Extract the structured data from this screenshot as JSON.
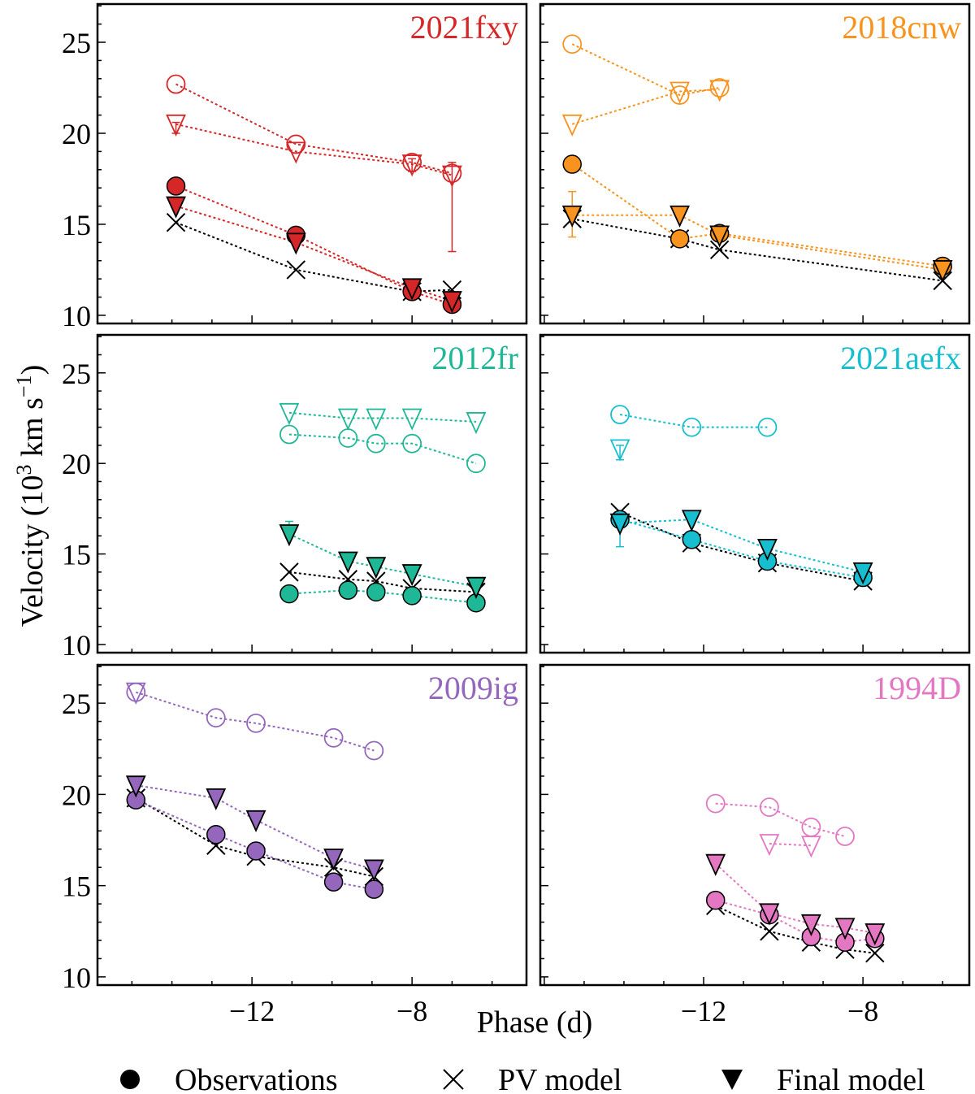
{
  "chart_data": {
    "type": "scatter",
    "xlabel": "Phase (d)",
    "ylabel": "Velocity (10",
    "ylabel_sup1": "3",
    "ylabel_mid": " km s",
    "ylabel_sup2": "−1",
    "ylabel_end": ")",
    "ylim": [
      9.55,
      27.1
    ],
    "yticks": [
      10,
      15,
      20,
      25
    ],
    "xticks": [
      -12,
      -8
    ],
    "xtick_labels": [
      "−12",
      "−8"
    ],
    "legend": {
      "position": "bottom",
      "entries": [
        {
          "label": "Observations",
          "marker": "filled-circle"
        },
        {
          "label": "PV model",
          "marker": "x"
        },
        {
          "label": "Final model",
          "marker": "filled-triangle-down"
        }
      ]
    },
    "panels": [
      {
        "name": "2021fxy",
        "color": "#d62728",
        "xlim": [
          -15.86,
          -5.14
        ],
        "hv_obs": {
          "x": [
            -13.9,
            -10.9,
            -8.0,
            -7.0
          ],
          "y": [
            22.7,
            19.4,
            18.4,
            17.8
          ]
        },
        "hv_model": {
          "x": [
            -13.9,
            -10.9,
            -8.0,
            -7.0
          ],
          "y": [
            20.5,
            19.0,
            18.3,
            17.7
          ],
          "err": [
            [
              20.0,
              20.6
            ],
            null,
            [
              17.9,
              18.6
            ],
            [
              13.5,
              18.4
            ]
          ]
        },
        "obs": {
          "x": [
            -13.9,
            -10.9,
            -8.0,
            -7.0
          ],
          "y": [
            17.1,
            14.4,
            11.3,
            10.6
          ]
        },
        "pv": {
          "x": [
            -13.9,
            -10.9,
            -8.0,
            -7.0
          ],
          "y": [
            15.1,
            12.5,
            11.3,
            11.4
          ]
        },
        "final": {
          "x": [
            -13.9,
            -10.9,
            -8.0,
            -7.0
          ],
          "y": [
            16.0,
            14.0,
            11.5,
            10.8
          ]
        }
      },
      {
        "name": "2018cnw",
        "color": "#f7931e",
        "xlim": [
          -16.1,
          -5.33
        ],
        "hv_obs": {
          "x": [
            -15.3,
            -12.6,
            -11.6
          ],
          "y": [
            24.9,
            22.1,
            22.5
          ]
        },
        "hv_model": {
          "x": [
            -15.3,
            -12.6,
            -11.6
          ],
          "y": [
            20.5,
            22.3,
            22.4
          ]
        },
        "obs": {
          "x": [
            -15.3,
            -12.6,
            -11.6,
            -6.0
          ],
          "y": [
            18.3,
            14.2,
            14.5,
            12.7
          ]
        },
        "pv": {
          "x": [
            -15.3,
            -12.6,
            -11.6,
            -6.0
          ],
          "y": [
            15.3,
            14.2,
            13.6,
            11.9
          ]
        },
        "final": {
          "x": [
            -15.3,
            -12.6,
            -11.6,
            -6.0
          ],
          "y": [
            15.5,
            15.5,
            14.4,
            12.5
          ],
          "err": [
            [
              14.3,
              16.8
            ],
            null,
            null,
            null
          ]
        }
      },
      {
        "name": "2012fr",
        "color": "#1fb896",
        "xlim": [
          -15.86,
          -5.14
        ],
        "hv_obs": {
          "x": [
            -11.07,
            -9.6,
            -8.9,
            -8.0,
            -6.4
          ],
          "y": [
            21.6,
            21.4,
            21.1,
            21.1,
            20.0
          ]
        },
        "hv_model": {
          "x": [
            -11.07,
            -9.6,
            -8.9,
            -8.0,
            -6.4
          ],
          "y": [
            22.8,
            22.5,
            22.5,
            22.5,
            22.3
          ]
        },
        "obs": {
          "x": [
            -11.07,
            -9.6,
            -8.9,
            -8.0,
            -6.4
          ],
          "y": [
            12.8,
            13.0,
            12.9,
            12.7,
            12.3
          ]
        },
        "pv": {
          "x": [
            -11.07,
            -9.6,
            -8.9,
            -8.0,
            -6.4
          ],
          "y": [
            14.0,
            13.6,
            13.5,
            13.1,
            12.9
          ]
        },
        "final": {
          "x": [
            -11.07,
            -9.6,
            -8.9,
            -8.0,
            -6.4
          ],
          "y": [
            16.1,
            14.6,
            14.3,
            13.9,
            13.2
          ],
          "err": [
            [
              15.9,
              16.8
            ],
            null,
            null,
            null,
            null
          ]
        }
      },
      {
        "name": "2021aefx",
        "color": "#17becf",
        "xlim": [
          -16.1,
          -5.33
        ],
        "hv_obs": {
          "x": [
            -14.1,
            -12.3,
            -10.4
          ],
          "y": [
            22.7,
            22.0,
            22.0
          ]
        },
        "hv_model": {
          "x": [
            -14.1
          ],
          "y": [
            20.8
          ],
          "err": [
            [
              20.2,
              21.0
            ]
          ]
        },
        "obs": {
          "x": [
            -14.1,
            -12.3,
            -10.4,
            -8.0
          ],
          "y": [
            16.9,
            15.8,
            14.6,
            13.7
          ],
          "err": [
            [
              15.4,
              17.3
            ],
            null,
            null,
            null
          ]
        },
        "pv": {
          "x": [
            -14.1,
            -12.3,
            -10.4,
            -8.0
          ],
          "y": [
            17.3,
            15.6,
            14.5,
            13.5
          ]
        },
        "final": {
          "x": [
            -14.1,
            -12.3,
            -10.4,
            -8.0
          ],
          "y": [
            16.7,
            16.9,
            15.3,
            14.0
          ]
        }
      },
      {
        "name": "2009ig",
        "color": "#9467bd",
        "xlim": [
          -15.86,
          -5.14
        ],
        "hv_obs": {
          "x": [
            -14.9,
            -12.9,
            -11.9,
            -9.96,
            -8.95
          ],
          "y": [
            25.6,
            24.2,
            23.9,
            23.1,
            22.4
          ]
        },
        "hv_model": {
          "x": [
            -14.9
          ],
          "y": [
            25.6
          ]
        },
        "obs": {
          "x": [
            -14.9,
            -12.9,
            -11.9,
            -9.96,
            -8.95
          ],
          "y": [
            19.7,
            17.8,
            16.9,
            15.2,
            14.8
          ]
        },
        "pv": {
          "x": [
            -14.9,
            -12.9,
            -11.9,
            -9.96,
            -8.95
          ],
          "y": [
            19.8,
            17.2,
            16.6,
            16.0,
            15.5
          ]
        },
        "final": {
          "x": [
            -14.9,
            -12.9,
            -11.9,
            -9.96,
            -8.95
          ],
          "y": [
            20.5,
            19.8,
            18.6,
            16.5,
            15.9
          ]
        }
      },
      {
        "name": "1994D",
        "color": "#e377c2",
        "xlim": [
          -16.1,
          -5.33
        ],
        "hv_obs": {
          "x": [
            -11.7,
            -10.35,
            -9.3,
            -8.45
          ],
          "y": [
            19.5,
            19.3,
            18.2,
            17.7
          ]
        },
        "hv_model": {
          "x": [
            -10.35,
            -9.3
          ],
          "y": [
            17.3,
            17.2
          ]
        },
        "obs": {
          "x": [
            -11.7,
            -10.35,
            -9.3,
            -8.45,
            -7.7
          ],
          "y": [
            14.2,
            13.4,
            12.2,
            11.9,
            12.1
          ]
        },
        "pv": {
          "x": [
            -11.7,
            -10.35,
            -9.3,
            -8.45,
            -7.7
          ],
          "y": [
            13.9,
            12.5,
            11.9,
            11.5,
            11.3
          ]
        },
        "final": {
          "x": [
            -11.7,
            -10.35,
            -9.3,
            -8.45,
            -7.7
          ],
          "y": [
            16.2,
            13.5,
            12.9,
            12.7,
            12.4
          ]
        }
      }
    ]
  }
}
